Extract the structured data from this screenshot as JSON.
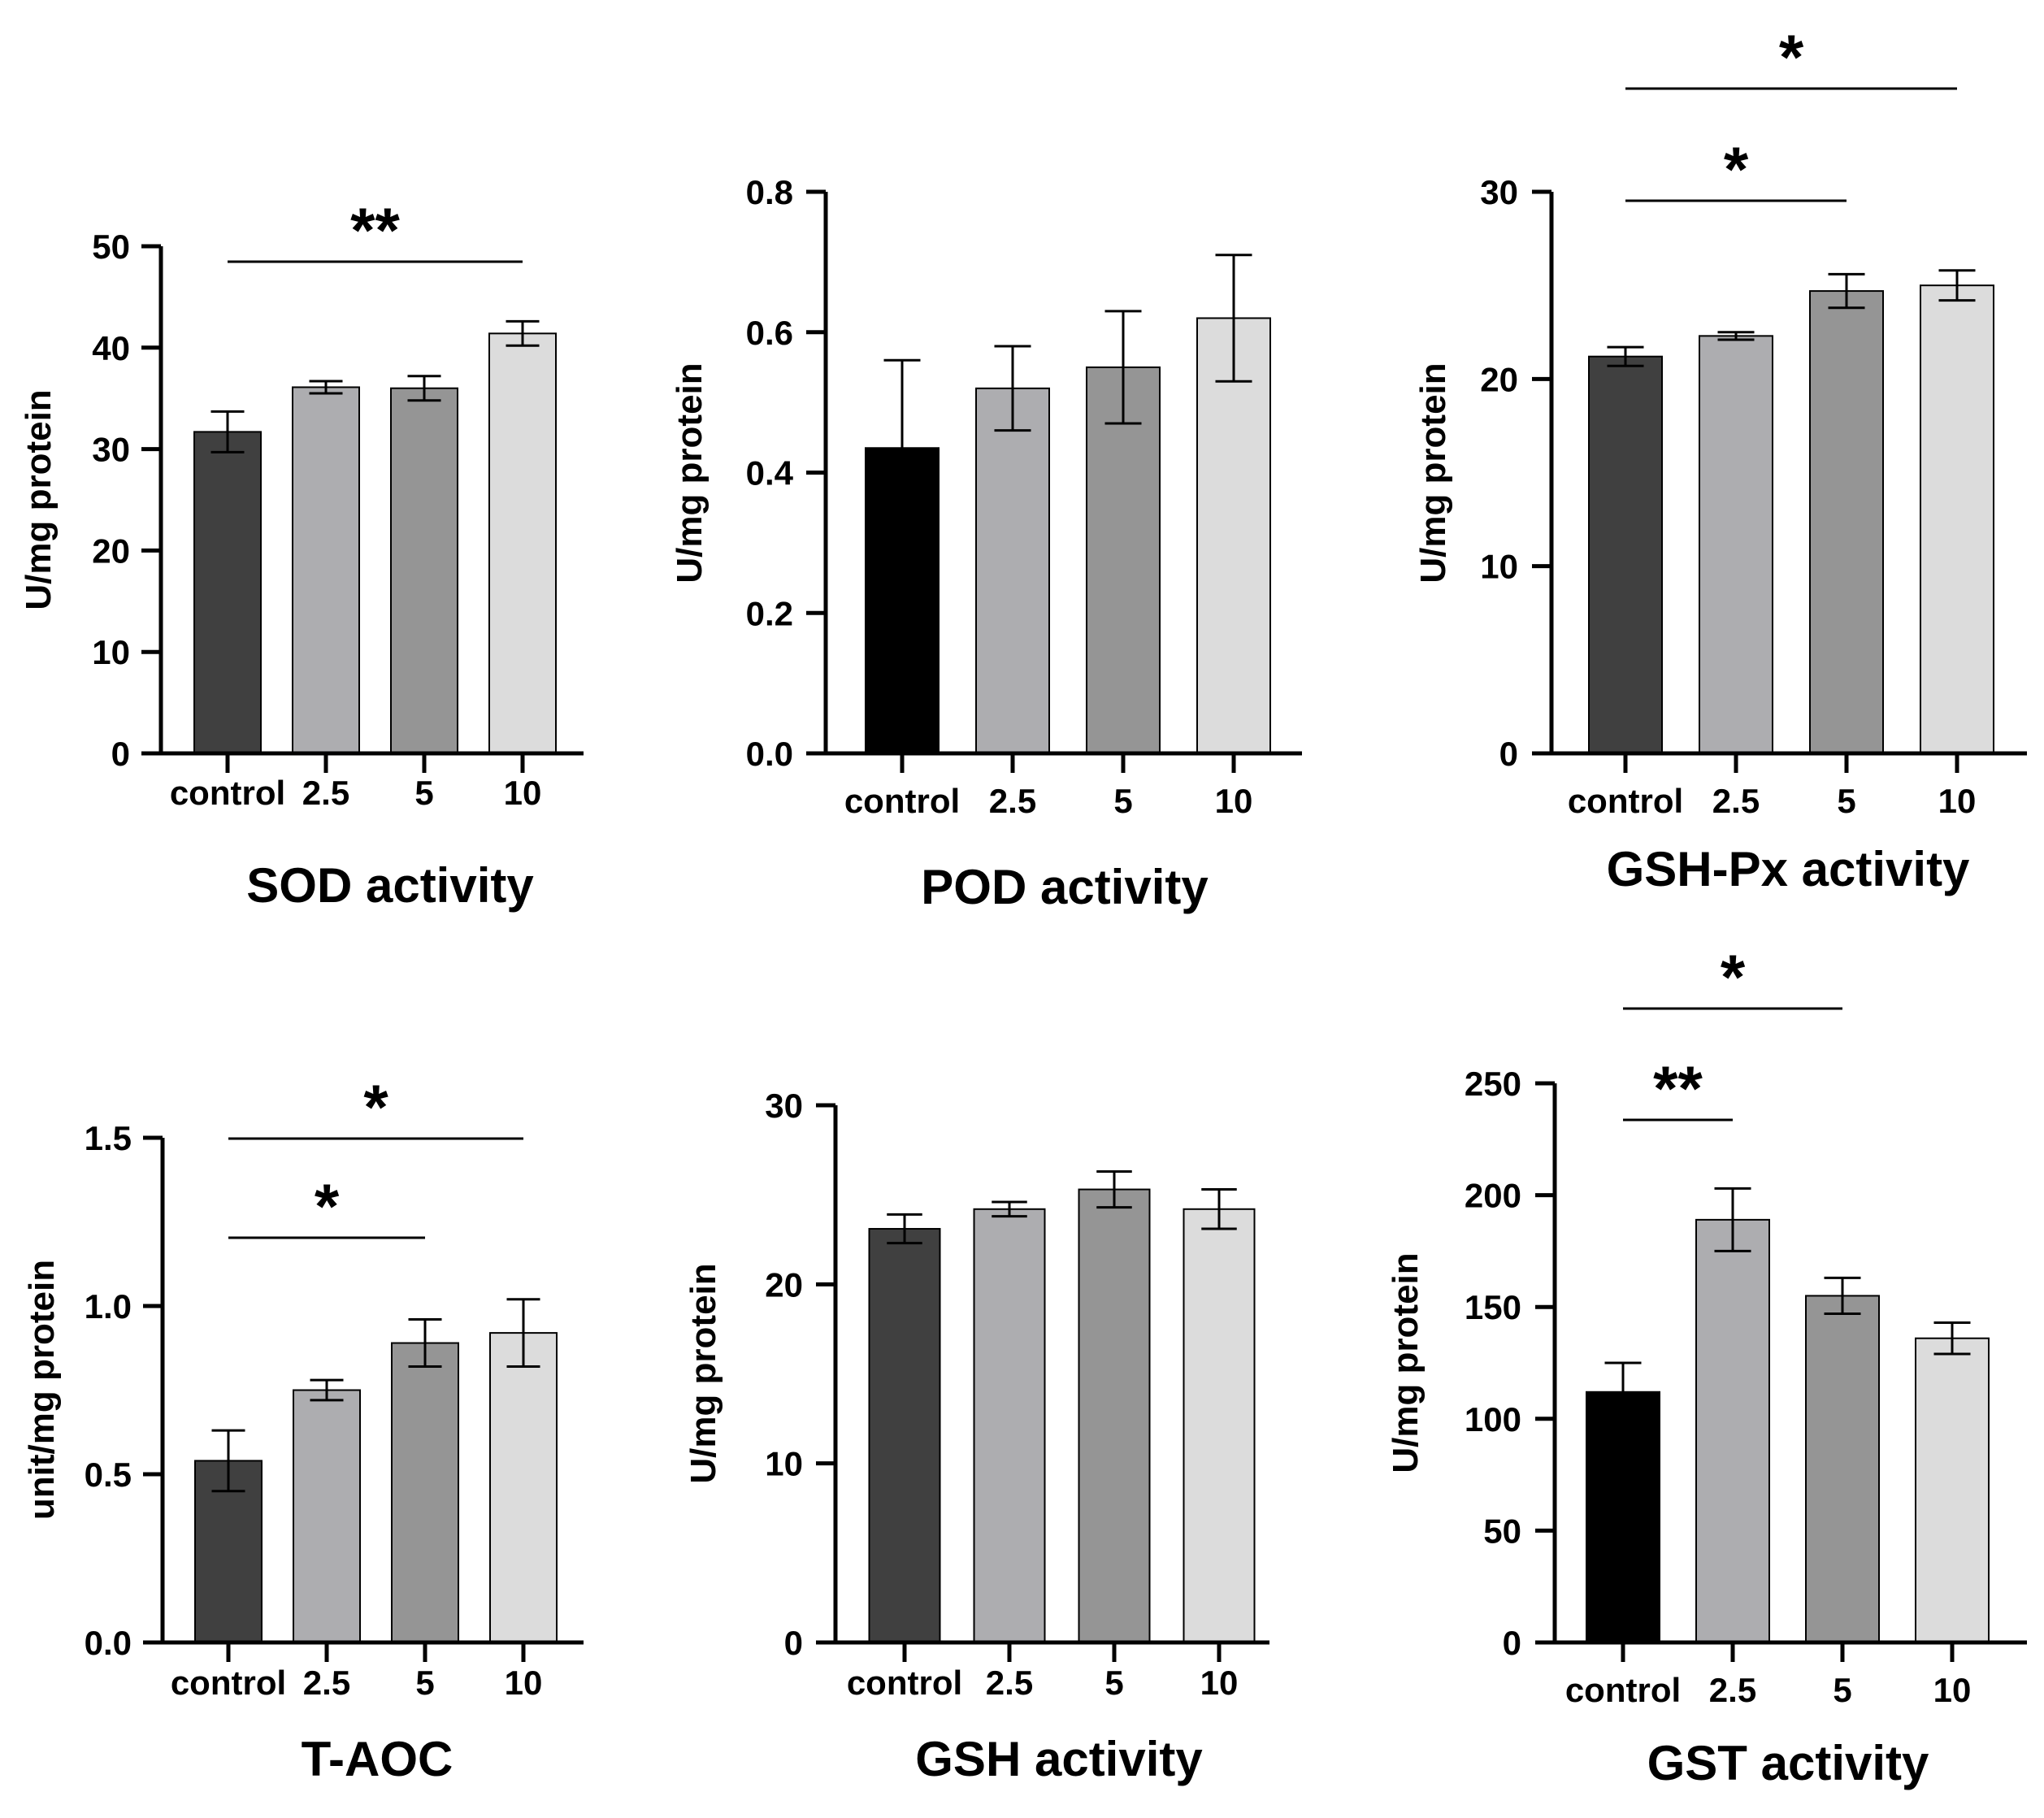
{
  "chart_data": [
    {
      "type": "bar",
      "title": "SOD activity",
      "ylabel": "U/mg protein",
      "ylim": [
        0,
        50
      ],
      "yticks": [
        0,
        10,
        20,
        30,
        40,
        50
      ],
      "tick_labels": [
        "0",
        "10",
        "20",
        "30",
        "40",
        "50"
      ],
      "categories": [
        "control",
        "2.5",
        "5",
        "10"
      ],
      "values": [
        31.7,
        36.1,
        36.0,
        41.4
      ],
      "errors": [
        2.0,
        0.6,
        1.2,
        1.2
      ],
      "colors": [
        "#404040",
        "#adadb0",
        "#959595",
        "#dcdcdc"
      ],
      "significance": [
        {
          "from": 0,
          "to": 3,
          "label": "**"
        }
      ]
    },
    {
      "type": "bar",
      "title": "POD activity",
      "ylabel": "U/mg protein",
      "ylim": [
        0,
        0.8
      ],
      "yticks": [
        0,
        0.2,
        0.4,
        0.6,
        0.8
      ],
      "tick_labels": [
        "0.0",
        "0.2",
        "0.4",
        "0.6",
        "0.8"
      ],
      "categories": [
        "control",
        "2.5",
        "5",
        "10"
      ],
      "values": [
        0.435,
        0.52,
        0.55,
        0.62
      ],
      "errors": [
        0.125,
        0.06,
        0.08,
        0.09
      ],
      "colors": [
        "#000000",
        "#adadb0",
        "#959595",
        "#dcdcdc"
      ],
      "significance": []
    },
    {
      "type": "bar",
      "title": "GSH-Px activity",
      "ylabel": "U/mg protein",
      "ylim": [
        0,
        30
      ],
      "yticks": [
        0,
        10,
        20,
        30
      ],
      "tick_labels": [
        "0",
        "10",
        "20",
        "30"
      ],
      "categories": [
        "control",
        "2.5",
        "5",
        "10"
      ],
      "values": [
        21.2,
        22.3,
        24.7,
        25.0
      ],
      "errors": [
        0.5,
        0.2,
        0.9,
        0.8
      ],
      "colors": [
        "#404040",
        "#adadb0",
        "#959595",
        "#dcdcdc"
      ],
      "significance": [
        {
          "from": 0,
          "to": 2,
          "label": "*"
        },
        {
          "from": 0,
          "to": 3,
          "label": "*"
        }
      ]
    },
    {
      "type": "bar",
      "title": "T-AOC",
      "ylabel": "unit/mg protein",
      "ylim": [
        0,
        1.5
      ],
      "yticks": [
        0,
        0.5,
        1.0,
        1.5
      ],
      "tick_labels": [
        "0.0",
        "0.5",
        "1.0",
        "1.5"
      ],
      "categories": [
        "control",
        "2.5",
        "5",
        "10"
      ],
      "values": [
        0.54,
        0.75,
        0.89,
        0.92
      ],
      "errors": [
        0.09,
        0.03,
        0.07,
        0.1
      ],
      "colors": [
        "#404040",
        "#adadb0",
        "#959595",
        "#dcdcdc"
      ],
      "significance": [
        {
          "from": 0,
          "to": 2,
          "label": "*"
        },
        {
          "from": 0,
          "to": 3,
          "label": "*"
        }
      ]
    },
    {
      "type": "bar",
      "title": "GSH activity",
      "ylabel": "U/mg protein",
      "ylim": [
        0,
        30
      ],
      "yticks": [
        0,
        10,
        20,
        30
      ],
      "tick_labels": [
        "0",
        "10",
        "20",
        "30"
      ],
      "categories": [
        "control",
        "2.5",
        "5",
        "10"
      ],
      "values": [
        23.1,
        24.2,
        25.3,
        24.2
      ],
      "errors": [
        0.8,
        0.4,
        1.0,
        1.1
      ],
      "colors": [
        "#404040",
        "#adadb0",
        "#959595",
        "#dcdcdc"
      ],
      "significance": []
    },
    {
      "type": "bar",
      "title": "GST activity",
      "ylabel": "U/mg protein",
      "ylim": [
        0,
        250
      ],
      "yticks": [
        0,
        50,
        100,
        150,
        200,
        250
      ],
      "tick_labels": [
        "0",
        "50",
        "100",
        "150",
        "200",
        "250"
      ],
      "categories": [
        "control",
        "2.5",
        "5",
        "10"
      ],
      "values": [
        112,
        189,
        155,
        136
      ],
      "errors": [
        13,
        14,
        8,
        7
      ],
      "colors": [
        "#000000",
        "#adadb0",
        "#959595",
        "#dcdcdc"
      ],
      "significance": [
        {
          "from": 0,
          "to": 1,
          "label": "**"
        },
        {
          "from": 0,
          "to": 2,
          "label": "*"
        }
      ]
    }
  ]
}
